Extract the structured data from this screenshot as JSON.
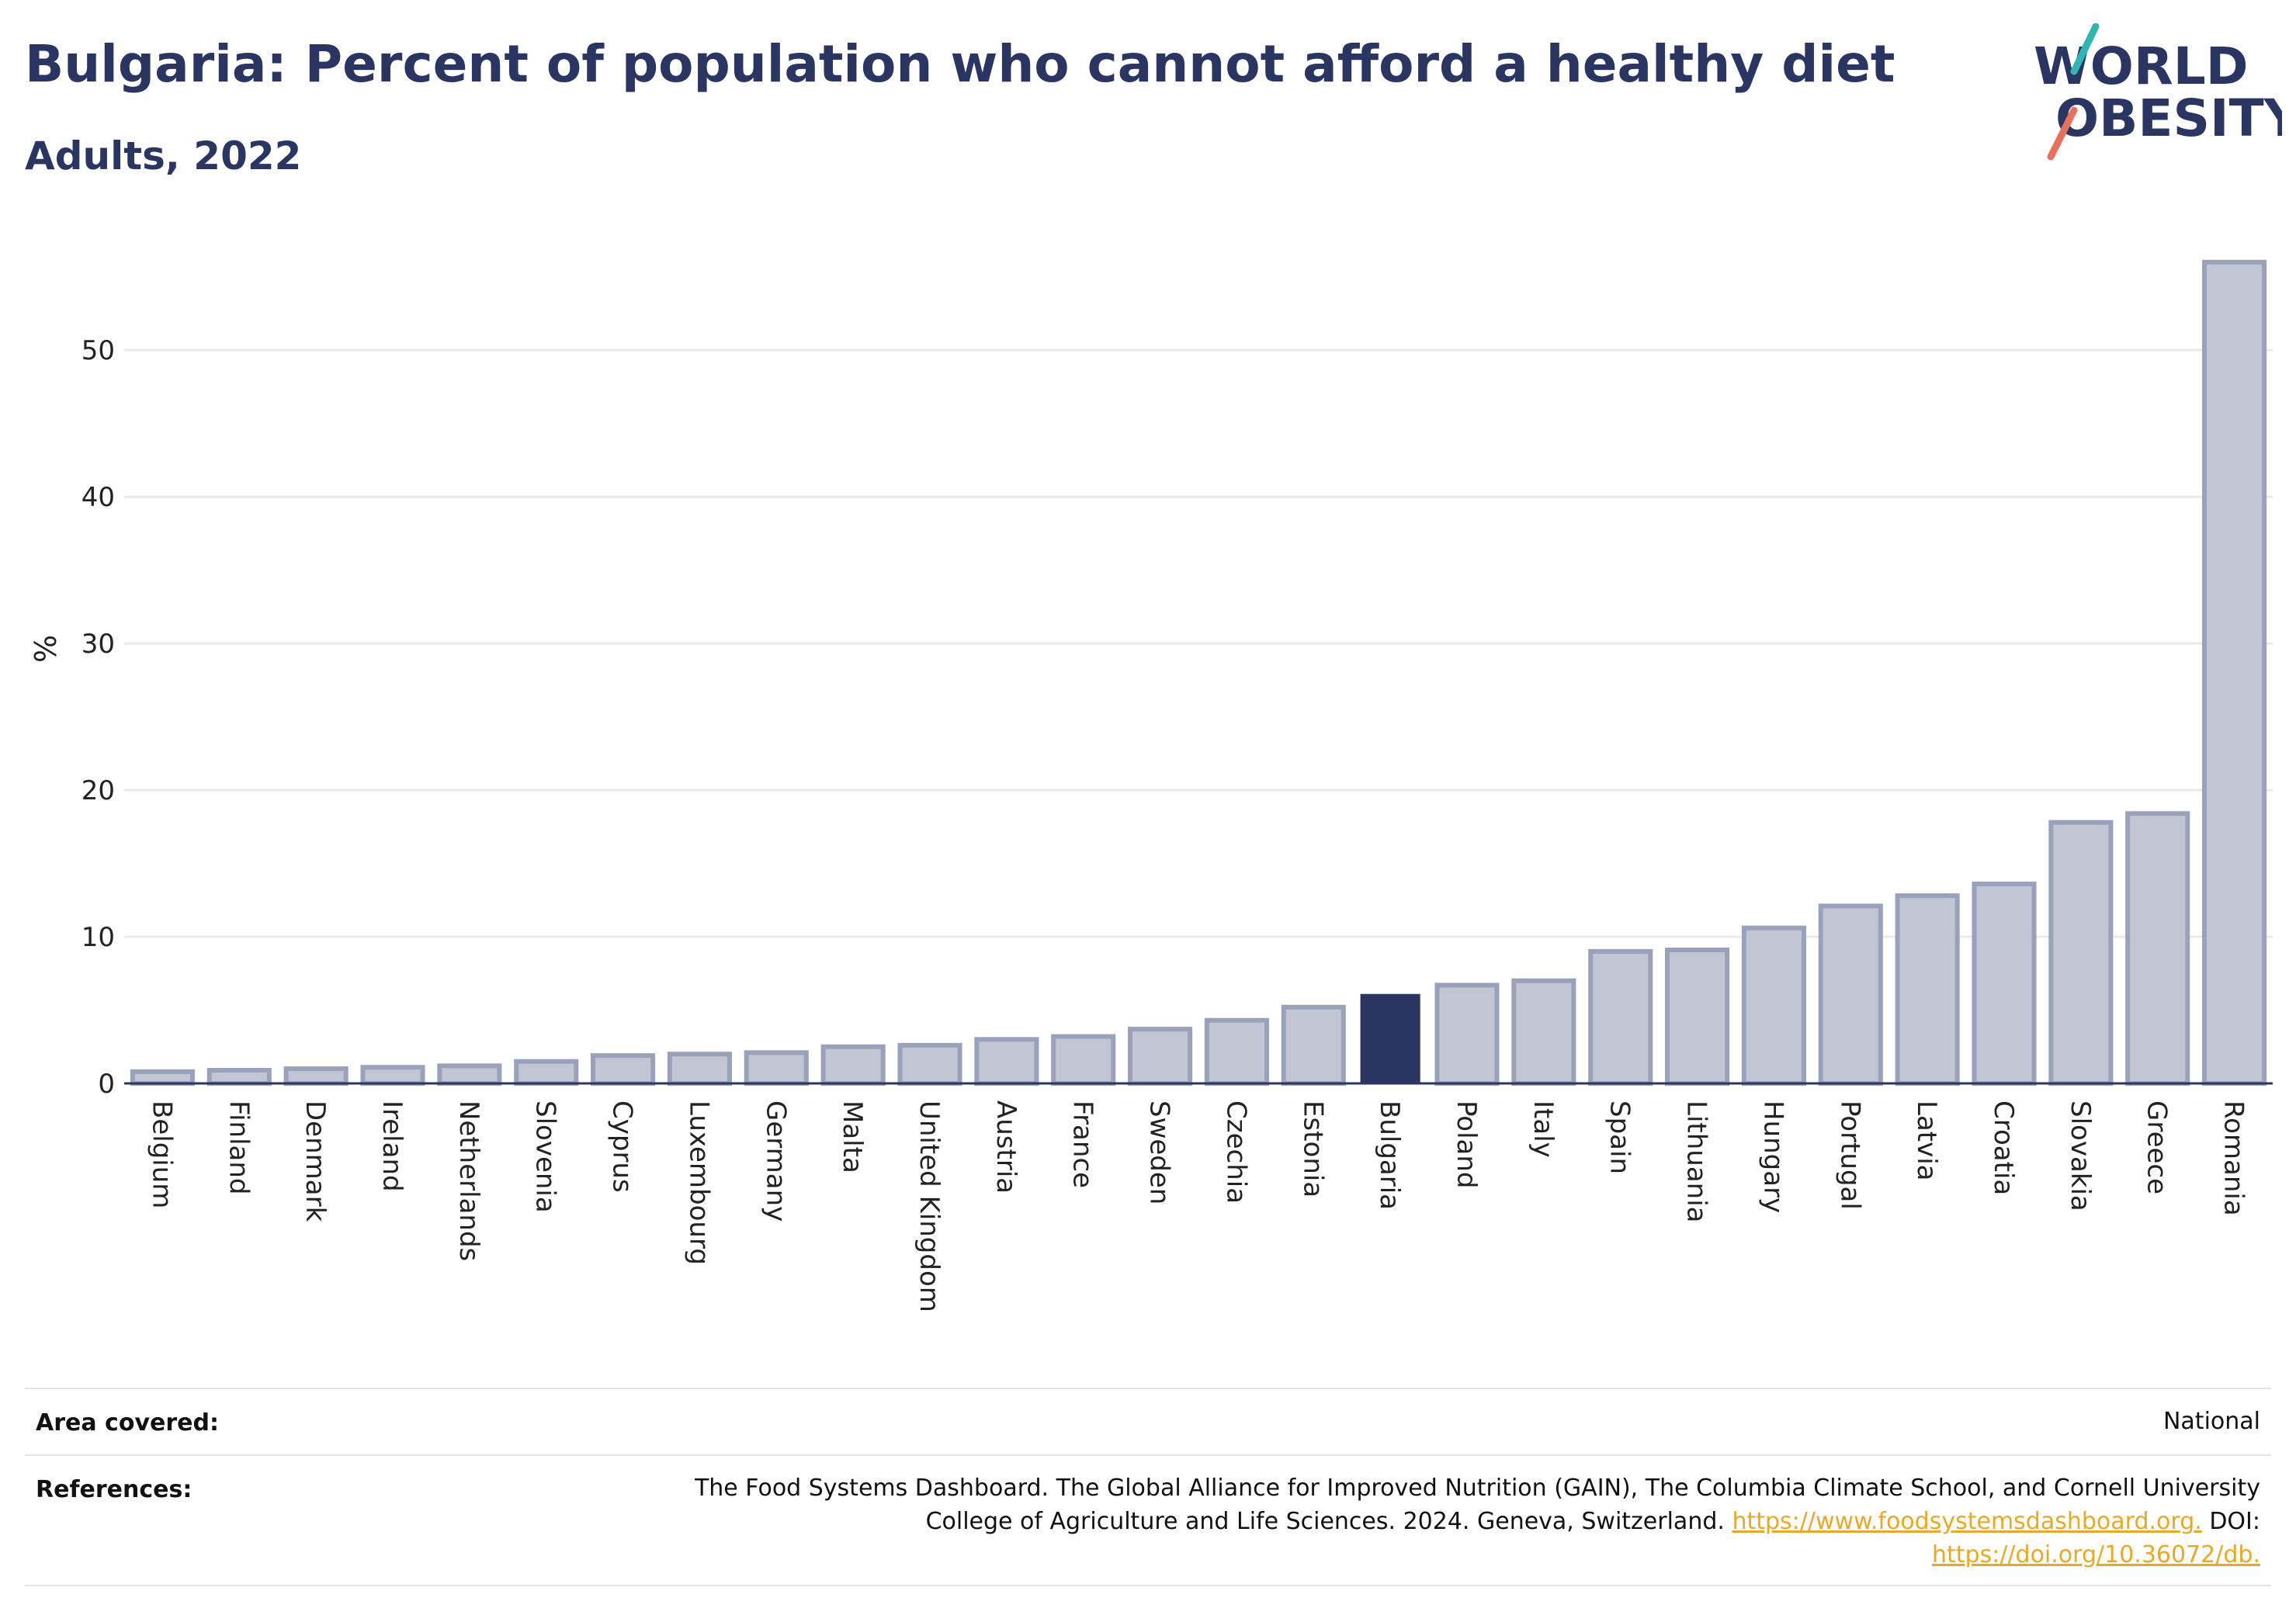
{
  "header": {
    "title": "Bulgaria: Percent of population who cannot afford a healthy diet",
    "subtitle": "Adults, 2022"
  },
  "logo": {
    "line1": "WORLD",
    "line2": "OBESITY"
  },
  "colors": {
    "highlight": "#2a3561",
    "bar_fill": "#c2c6d4",
    "bar_stroke": "#9aa1bb",
    "teal_accent": "#2fb5b4",
    "coral_accent": "#e8705e",
    "link": "#e8a92b"
  },
  "chart_data": {
    "type": "bar",
    "title": "Bulgaria: Percent of population who cannot afford a healthy diet",
    "subtitle": "Adults, 2022",
    "xlabel": "",
    "ylabel": "%",
    "ylim": [
      0,
      58
    ],
    "yticks": [
      0,
      10,
      20,
      30,
      40,
      50
    ],
    "grid": true,
    "highlight": "Bulgaria",
    "categories": [
      "Belgium",
      "Finland",
      "Denmark",
      "Ireland",
      "Netherlands",
      "Slovenia",
      "Cyprus",
      "Luxembourg",
      "Germany",
      "Malta",
      "United Kingdom",
      "Austria",
      "France",
      "Sweden",
      "Czechia",
      "Estonia",
      "Bulgaria",
      "Poland",
      "Italy",
      "Spain",
      "Lithuania",
      "Hungary",
      "Portugal",
      "Latvia",
      "Croatia",
      "Slovakia",
      "Greece",
      "Romania"
    ],
    "values": [
      0.8,
      0.9,
      1.0,
      1.1,
      1.2,
      1.5,
      1.9,
      2.0,
      2.1,
      2.5,
      2.6,
      3.0,
      3.2,
      3.7,
      4.3,
      5.2,
      6.1,
      6.7,
      7.0,
      9.0,
      9.1,
      10.6,
      12.1,
      12.8,
      13.6,
      17.8,
      18.4,
      56.0
    ]
  },
  "info": {
    "area_label": "Area covered:",
    "area_value": "National",
    "references_label": "References:",
    "references_line1": "The Food Systems Dashboard. The Global Alliance for Improved Nutrition (GAIN), The Columbia Climate School, and Cornell University",
    "references_line2_text": "College of Agriculture and Life Sciences. 2024. Geneva, Switzerland.",
    "references_link1": "https://www.foodsystemsdashboard.org.",
    "references_doi_label": "DOI:",
    "references_link2": "https://doi.org/10.36072/db."
  }
}
